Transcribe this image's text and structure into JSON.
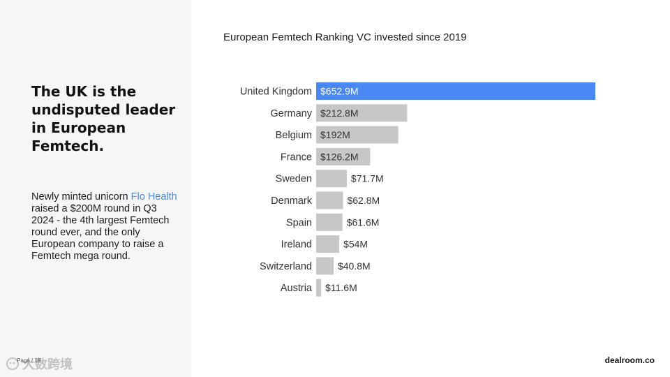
{
  "slide": {
    "headline": "The UK is the undisputed leader in European Femtech.",
    "body_prefix": "Newly minted unicorn ",
    "body_link": "Flo Health",
    "body_suffix": " raised a $200M round in Q3 2024 - the 4th largest Femtech round ever, and the only European company to raise a Femtech mega round.",
    "page_number": "Page / 18",
    "watermark": "大数跨境",
    "brand": "dealroom.co"
  },
  "colors": {
    "highlight": "#4a89f3",
    "bar": "#c7c7c7",
    "panel": "#f5f6f8",
    "link": "#4a8ae8"
  },
  "chart_data": {
    "type": "bar",
    "orientation": "horizontal",
    "title": "European Femtech Ranking VC invested since 2019",
    "categories": [
      "United Kingdom",
      "Germany",
      "Belgium",
      "France",
      "Sweden",
      "Denmark",
      "Spain",
      "Ireland",
      "Switzerland",
      "Austria"
    ],
    "values": [
      652.9,
      212.8,
      192,
      126.2,
      71.7,
      62.8,
      61.6,
      54,
      40.8,
      11.6
    ],
    "labels": [
      "$652.9M",
      "$212.8M",
      "$192M",
      "$126.2M",
      "$71.7M",
      "$62.8M",
      "$61.6M",
      "$54M",
      "$40.8M",
      "$11.6M"
    ],
    "highlight_index": 0,
    "xlabel": "",
    "ylabel": "",
    "grid": false,
    "legend": false
  }
}
